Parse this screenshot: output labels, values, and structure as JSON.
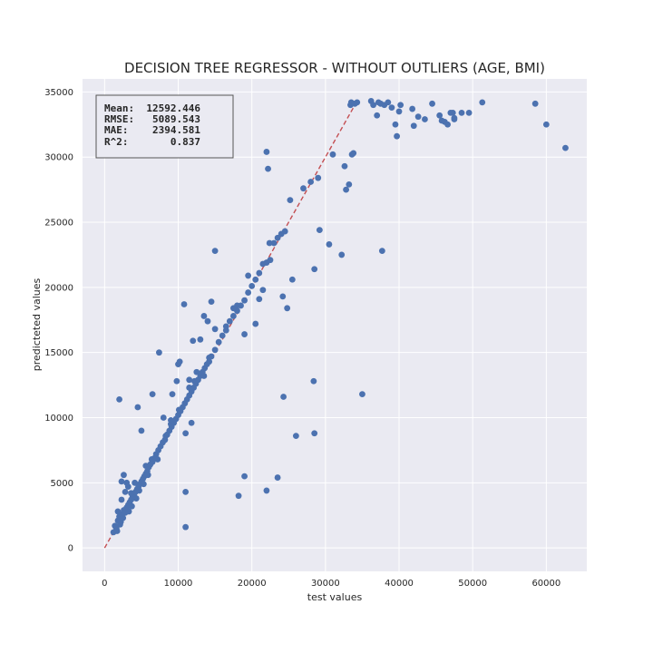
{
  "chart_data": {
    "type": "scatter",
    "title": "DECISION TREE REGRESSOR - WITHOUT OUTLIERS (AGE, BMI)",
    "xlabel": "test values",
    "ylabel": "predicteted values",
    "xlim": [
      -3000,
      65500
    ],
    "ylim": [
      -1800,
      36000
    ],
    "xticks": [
      0,
      10000,
      20000,
      30000,
      40000,
      50000,
      60000
    ],
    "yticks": [
      0,
      5000,
      10000,
      15000,
      20000,
      25000,
      30000,
      35000
    ],
    "grid": true,
    "colors": {
      "points": "#4c72b0",
      "line": "#c44e52",
      "background": "#eaeaf2"
    },
    "stats_box": {
      "position": "top-left",
      "lines": [
        "Mean:  12592.446",
        "RMSE:   5089.543",
        "MAE:    2394.581",
        "R^2:       0.837"
      ]
    },
    "reference_line": {
      "style": "dashed",
      "from": [
        0,
        0
      ],
      "to": [
        34000,
        34000
      ]
    },
    "series": [
      {
        "points": [
          [
            1200,
            1200
          ],
          [
            1400,
            1700
          ],
          [
            1600,
            1500
          ],
          [
            1800,
            2100
          ],
          [
            2000,
            2400
          ],
          [
            2200,
            2000
          ],
          [
            2400,
            2600
          ],
          [
            2600,
            2900
          ],
          [
            2800,
            2700
          ],
          [
            3000,
            3100
          ],
          [
            3200,
            3300
          ],
          [
            3400,
            3500
          ],
          [
            3600,
            3700
          ],
          [
            3800,
            3900
          ],
          [
            4000,
            4100
          ],
          [
            4200,
            4300
          ],
          [
            4400,
            4500
          ],
          [
            4600,
            4700
          ],
          [
            4800,
            4900
          ],
          [
            5000,
            5100
          ],
          [
            5200,
            5300
          ],
          [
            5400,
            5500
          ],
          [
            5600,
            5700
          ],
          [
            5800,
            5900
          ],
          [
            6000,
            6200
          ],
          [
            6200,
            6400
          ],
          [
            6500,
            6600
          ],
          [
            6800,
            6900
          ],
          [
            7000,
            7200
          ],
          [
            7300,
            7500
          ],
          [
            7600,
            7800
          ],
          [
            7900,
            8100
          ],
          [
            8200,
            8300
          ],
          [
            8500,
            8700
          ],
          [
            8800,
            9000
          ],
          [
            9100,
            9300
          ],
          [
            9400,
            9600
          ],
          [
            9700,
            9900
          ],
          [
            10000,
            10200
          ],
          [
            10300,
            10500
          ],
          [
            10600,
            10800
          ],
          [
            10900,
            11100
          ],
          [
            11200,
            11400
          ],
          [
            11500,
            11700
          ],
          [
            11800,
            12000
          ],
          [
            12100,
            12300
          ],
          [
            12400,
            12600
          ],
          [
            12700,
            12900
          ],
          [
            13000,
            13200
          ],
          [
            13300,
            13500
          ],
          [
            13600,
            13800
          ],
          [
            13900,
            14100
          ],
          [
            14200,
            14300
          ],
          [
            14500,
            14700
          ],
          [
            15000,
            15200
          ],
          [
            15500,
            15800
          ],
          [
            16000,
            16300
          ],
          [
            16500,
            16700
          ],
          [
            17000,
            17400
          ],
          [
            17500,
            17800
          ],
          [
            18000,
            18200
          ],
          [
            18500,
            18600
          ],
          [
            19000,
            19000
          ],
          [
            19500,
            19600
          ],
          [
            20000,
            20100
          ],
          [
            20500,
            20600
          ],
          [
            21000,
            21100
          ],
          [
            21500,
            21800
          ],
          [
            22000,
            21900
          ],
          [
            22500,
            22100
          ],
          [
            23000,
            23400
          ],
          [
            23500,
            23800
          ],
          [
            24000,
            24100
          ],
          [
            24500,
            24300
          ],
          [
            1800,
            2800
          ],
          [
            2300,
            3700
          ],
          [
            2800,
            4300
          ],
          [
            3200,
            4700
          ],
          [
            3600,
            4200
          ],
          [
            4100,
            5000
          ],
          [
            2300,
            5100
          ],
          [
            2600,
            5600
          ],
          [
            3000,
            5000
          ],
          [
            5600,
            6300
          ],
          [
            6400,
            6800
          ],
          [
            8300,
            8600
          ],
          [
            9000,
            9500
          ],
          [
            10100,
            10600
          ],
          [
            11500,
            12300
          ],
          [
            12200,
            12800
          ],
          [
            13500,
            13200
          ],
          [
            14200,
            14600
          ],
          [
            1700,
            1300
          ],
          [
            2100,
            1800
          ],
          [
            2500,
            2300
          ],
          [
            3300,
            2800
          ],
          [
            3700,
            3200
          ],
          [
            4300,
            3800
          ],
          [
            4700,
            4400
          ],
          [
            5300,
            4900
          ],
          [
            5900,
            5600
          ],
          [
            7200,
            6800
          ],
          [
            2000,
            11400
          ],
          [
            4500,
            10800
          ],
          [
            5000,
            9000
          ],
          [
            6500,
            11800
          ],
          [
            7400,
            15000
          ],
          [
            9200,
            11800
          ],
          [
            9800,
            12800
          ],
          [
            10000,
            14100
          ],
          [
            10200,
            14300
          ],
          [
            10800,
            18700
          ],
          [
            11500,
            12900
          ],
          [
            12000,
            15900
          ],
          [
            12500,
            13500
          ],
          [
            13000,
            16000
          ],
          [
            13500,
            17800
          ],
          [
            14000,
            17400
          ],
          [
            14500,
            18900
          ],
          [
            15000,
            16800
          ],
          [
            15000,
            22800
          ],
          [
            16500,
            17000
          ],
          [
            17500,
            18400
          ],
          [
            18000,
            18600
          ],
          [
            19000,
            16400
          ],
          [
            19500,
            20900
          ],
          [
            20500,
            17200
          ],
          [
            21000,
            19100
          ],
          [
            21500,
            19800
          ],
          [
            22000,
            30400
          ],
          [
            22200,
            29100
          ],
          [
            22400,
            23400
          ],
          [
            24200,
            19300
          ],
          [
            24800,
            18400
          ],
          [
            25200,
            26700
          ],
          [
            25500,
            20600
          ],
          [
            27000,
            27600
          ],
          [
            28000,
            28100
          ],
          [
            28500,
            21400
          ],
          [
            29000,
            28400
          ],
          [
            29200,
            24400
          ],
          [
            30500,
            23300
          ],
          [
            31000,
            30200
          ],
          [
            32200,
            22500
          ],
          [
            32600,
            29300
          ],
          [
            32800,
            27500
          ],
          [
            33200,
            27900
          ],
          [
            33600,
            30200
          ],
          [
            33800,
            30300
          ],
          [
            33400,
            34000
          ],
          [
            33500,
            34200
          ],
          [
            34000,
            34100
          ],
          [
            34300,
            34200
          ],
          [
            36200,
            34300
          ],
          [
            36500,
            34000
          ],
          [
            37000,
            33200
          ],
          [
            37200,
            34200
          ],
          [
            37500,
            34100
          ],
          [
            38000,
            34000
          ],
          [
            38500,
            34200
          ],
          [
            39000,
            33800
          ],
          [
            39500,
            32500
          ],
          [
            39700,
            31600
          ],
          [
            40000,
            33500
          ],
          [
            40200,
            34000
          ],
          [
            41800,
            33700
          ],
          [
            42000,
            32400
          ],
          [
            42600,
            33100
          ],
          [
            43500,
            32900
          ],
          [
            44500,
            34100
          ],
          [
            45500,
            33200
          ],
          [
            45800,
            32800
          ],
          [
            46200,
            32700
          ],
          [
            46600,
            32500
          ],
          [
            47000,
            33400
          ],
          [
            47300,
            33400
          ],
          [
            47500,
            33000
          ],
          [
            47500,
            32900
          ],
          [
            48500,
            33400
          ],
          [
            49500,
            33400
          ],
          [
            51300,
            34200
          ],
          [
            58500,
            34100
          ],
          [
            60000,
            32500
          ],
          [
            62600,
            30700
          ],
          [
            11000,
            1600
          ],
          [
            11000,
            4300
          ],
          [
            18200,
            4000
          ],
          [
            19000,
            5500
          ],
          [
            22000,
            4400
          ],
          [
            23500,
            5400
          ],
          [
            26000,
            8600
          ],
          [
            28500,
            8800
          ],
          [
            28400,
            12800
          ],
          [
            24300,
            11600
          ],
          [
            35000,
            11800
          ],
          [
            37700,
            22800
          ],
          [
            9000,
            9800
          ],
          [
            11800,
            9600
          ],
          [
            11000,
            8800
          ],
          [
            8000,
            10000
          ]
        ]
      }
    ]
  }
}
